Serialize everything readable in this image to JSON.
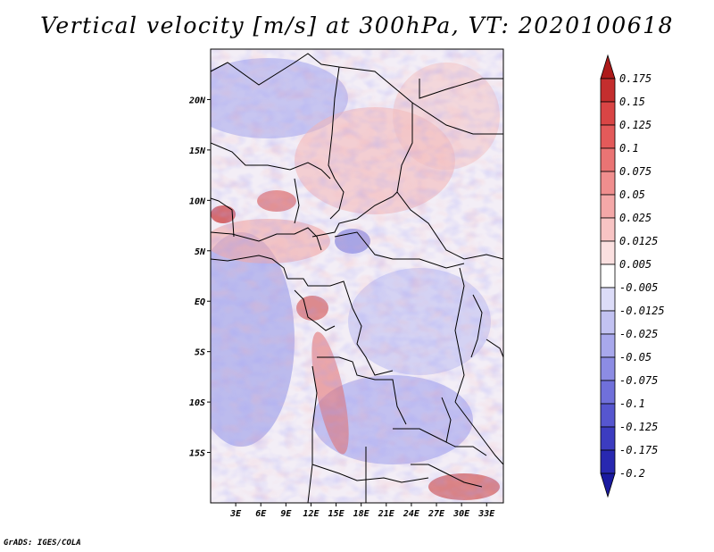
{
  "title": "Vertical velocity [m/s] at 300hPa, VT: 2020100618",
  "footer": "GrADS: IGES/COLA",
  "map": {
    "lon_range": [
      0,
      35
    ],
    "lat_range": [
      -20,
      25
    ],
    "lon_ticks": [
      "3E",
      "6E",
      "9E",
      "12E",
      "15E",
      "18E",
      "21E",
      "24E",
      "27E",
      "30E",
      "33E"
    ],
    "lat_ticks": [
      "20N",
      "15N",
      "10N",
      "5N",
      "EQ",
      "5S",
      "10S",
      "15S"
    ]
  },
  "colorbar": {
    "levels": [
      "0.175",
      "0.15",
      "0.125",
      "0.1",
      "0.075",
      "0.05",
      "0.025",
      "0.0125",
      "0.005",
      "-0.005",
      "-0.0125",
      "-0.025",
      "-0.05",
      "-0.075",
      "-0.1",
      "-0.125",
      "-0.175",
      "-0.2"
    ],
    "colors": [
      "#ad1a1a",
      "#c42e2e",
      "#d94545",
      "#e35a5a",
      "#ea7474",
      "#f08e8e",
      "#f4a8a8",
      "#f8c4c4",
      "#fbe0e0",
      "#ffffff",
      "#dcdcf8",
      "#c2c2f2",
      "#a8a8ec",
      "#8c8ce4",
      "#7070da",
      "#5656cf",
      "#3c3cc0",
      "#2828b0",
      "#1a1aa0"
    ]
  }
}
